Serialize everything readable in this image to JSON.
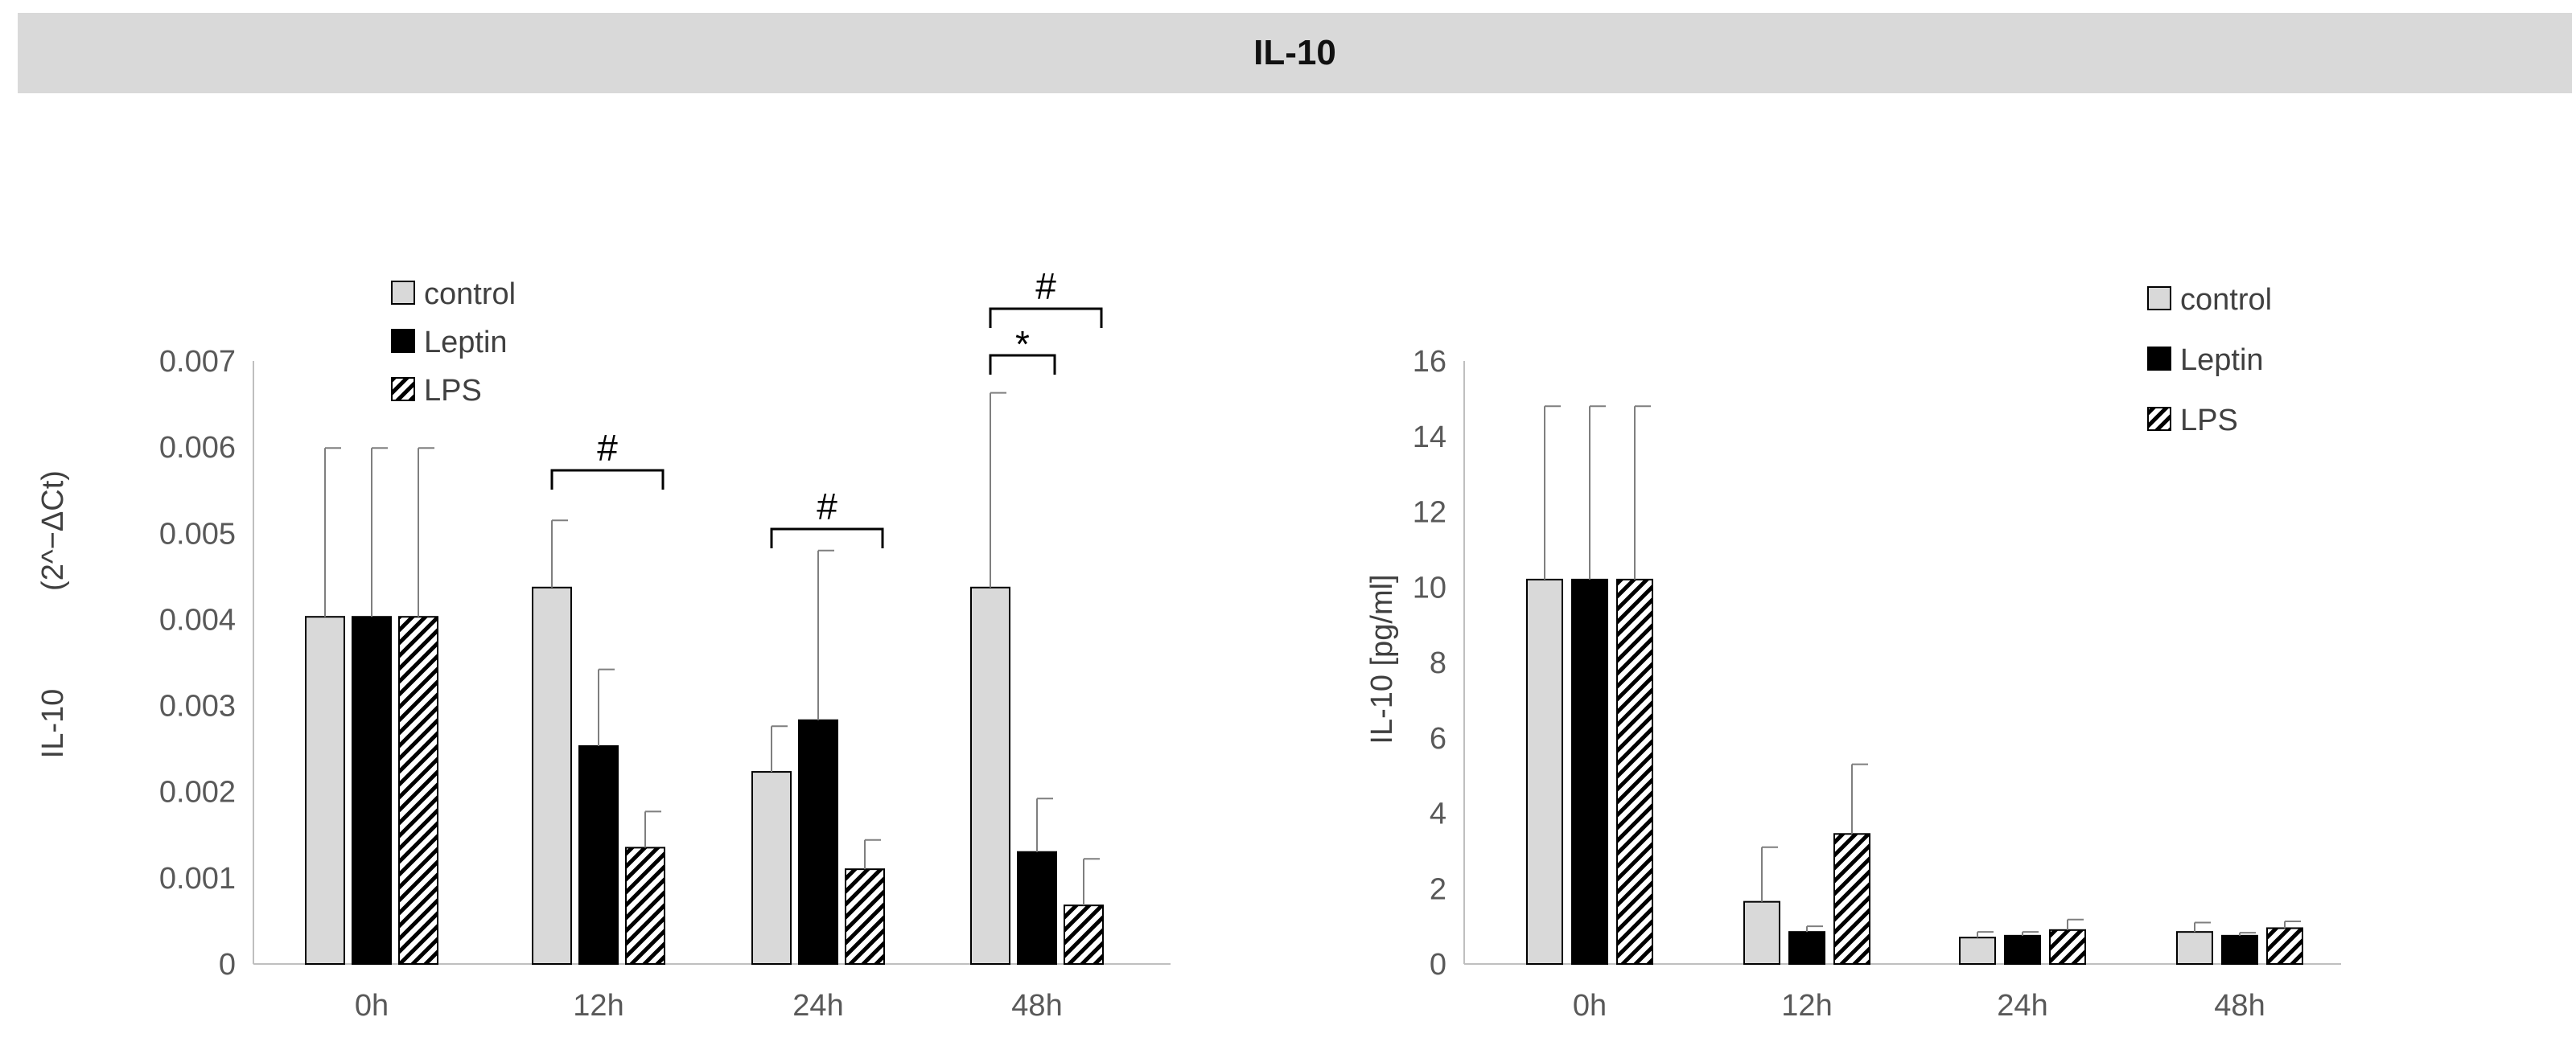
{
  "header": {
    "title": "IL-10"
  },
  "colors": {
    "control": "#d9d9d9",
    "leptin": "#000000",
    "lps": "hatch",
    "axis": "#bfbfbf",
    "text": "#595959"
  },
  "chart_data": [
    {
      "type": "bar",
      "categories": [
        "0h",
        "12h",
        "24h",
        "48h"
      ],
      "series": [
        {
          "name": "control",
          "values": [
            0.00403,
            0.00437,
            0.00223,
            0.00437
          ],
          "errors": [
            0.00196,
            0.00078,
            0.00053,
            0.00226
          ]
        },
        {
          "name": "Leptin",
          "values": [
            0.00403,
            0.00253,
            0.00283,
            0.0013
          ],
          "errors": [
            0.00196,
            0.00089,
            0.00197,
            0.00062
          ]
        },
        {
          "name": "LPS",
          "values": [
            0.00403,
            0.00135,
            0.0011,
            0.00068
          ],
          "errors": [
            0.00196,
            0.00042,
            0.00034,
            0.00054
          ]
        }
      ],
      "ylabel_main": "IL-10",
      "ylabel_unit": "(2^−ΔCt)",
      "ylim": [
        0,
        0.007
      ],
      "yticks": [
        "0",
        "0.001",
        "0.002",
        "0.003",
        "0.004",
        "0.005",
        "0.006",
        "0.007"
      ],
      "legend_position": "top-left",
      "annotations": [
        {
          "label": "#",
          "category": "12h",
          "from": "control",
          "to": "LPS",
          "level": 1
        },
        {
          "label": "#",
          "category": "24h",
          "from": "control",
          "to": "LPS",
          "level": 1
        },
        {
          "label": "*",
          "category": "48h",
          "from": "control",
          "to": "Leptin",
          "level": 1
        },
        {
          "label": "#",
          "category": "48h",
          "from": "control",
          "to": "LPS",
          "level": 2
        }
      ]
    },
    {
      "type": "bar",
      "categories": [
        "0h",
        "12h",
        "24h",
        "48h"
      ],
      "series": [
        {
          "name": "control",
          "values": [
            10.2,
            1.65,
            0.7,
            0.85
          ],
          "errors": [
            4.6,
            1.45,
            0.15,
            0.25
          ]
        },
        {
          "name": "Leptin",
          "values": [
            10.2,
            0.85,
            0.75,
            0.75
          ],
          "errors": [
            4.6,
            0.15,
            0.1,
            0.08
          ]
        },
        {
          "name": "LPS",
          "values": [
            10.2,
            3.45,
            0.9,
            0.95
          ],
          "errors": [
            4.6,
            1.85,
            0.28,
            0.18
          ]
        }
      ],
      "ylabel": "IL-10 [pg/ml]",
      "ylim": [
        0,
        16
      ],
      "yticks": [
        "0",
        "2",
        "4",
        "6",
        "8",
        "10",
        "12",
        "14",
        "16"
      ],
      "legend_position": "top-right",
      "annotations": []
    }
  ]
}
